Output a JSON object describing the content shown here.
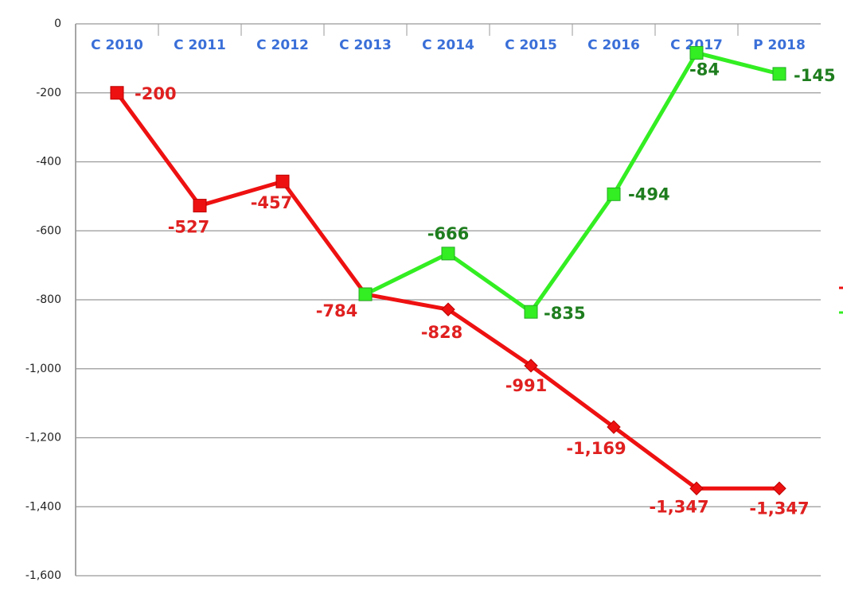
{
  "chart_data": {
    "type": "line",
    "categories": [
      "C 2010",
      "C 2011",
      "C 2012",
      "C 2013",
      "C 2014",
      "C 2015",
      "C 2016",
      "C 2017",
      "P 2018"
    ],
    "ylim": [
      -1600,
      0
    ],
    "yticks": [
      0,
      -200,
      -400,
      -600,
      -800,
      {
        "value": -1000,
        "label": "-1,000"
      },
      {
        "value": -1200,
        "label": "-1,200"
      },
      {
        "value": -1400,
        "label": "-1,400"
      },
      {
        "value": -1600,
        "label": "-1,600"
      }
    ],
    "grid": true,
    "series": [
      {
        "color": "#ee1111",
        "label_color": "#e02020",
        "markers": [
          "square",
          "square",
          "square",
          "square",
          "diamond",
          "diamond",
          "diamond",
          "diamond",
          "diamond"
        ],
        "values": [
          -200,
          -527,
          -457,
          -784,
          -828,
          -991,
          -1169,
          -1347,
          -1347
        ],
        "value_labels": [
          "-200",
          "-527",
          "-457",
          "-784",
          "-828",
          "-991",
          "-1,169",
          "-1,347",
          "-1,347"
        ]
      },
      {
        "color": "#33ee22",
        "label_color": "#1e7d1e",
        "markers": [
          "square",
          "square",
          "square",
          "square",
          "square",
          "square",
          "square",
          "square",
          "square"
        ],
        "values": [
          null,
          null,
          null,
          -784,
          -666,
          -835,
          -494,
          -84,
          -145
        ],
        "value_labels": [
          null,
          null,
          null,
          null,
          "-666",
          "-835",
          "-494",
          "-84",
          "-145"
        ]
      }
    ]
  }
}
